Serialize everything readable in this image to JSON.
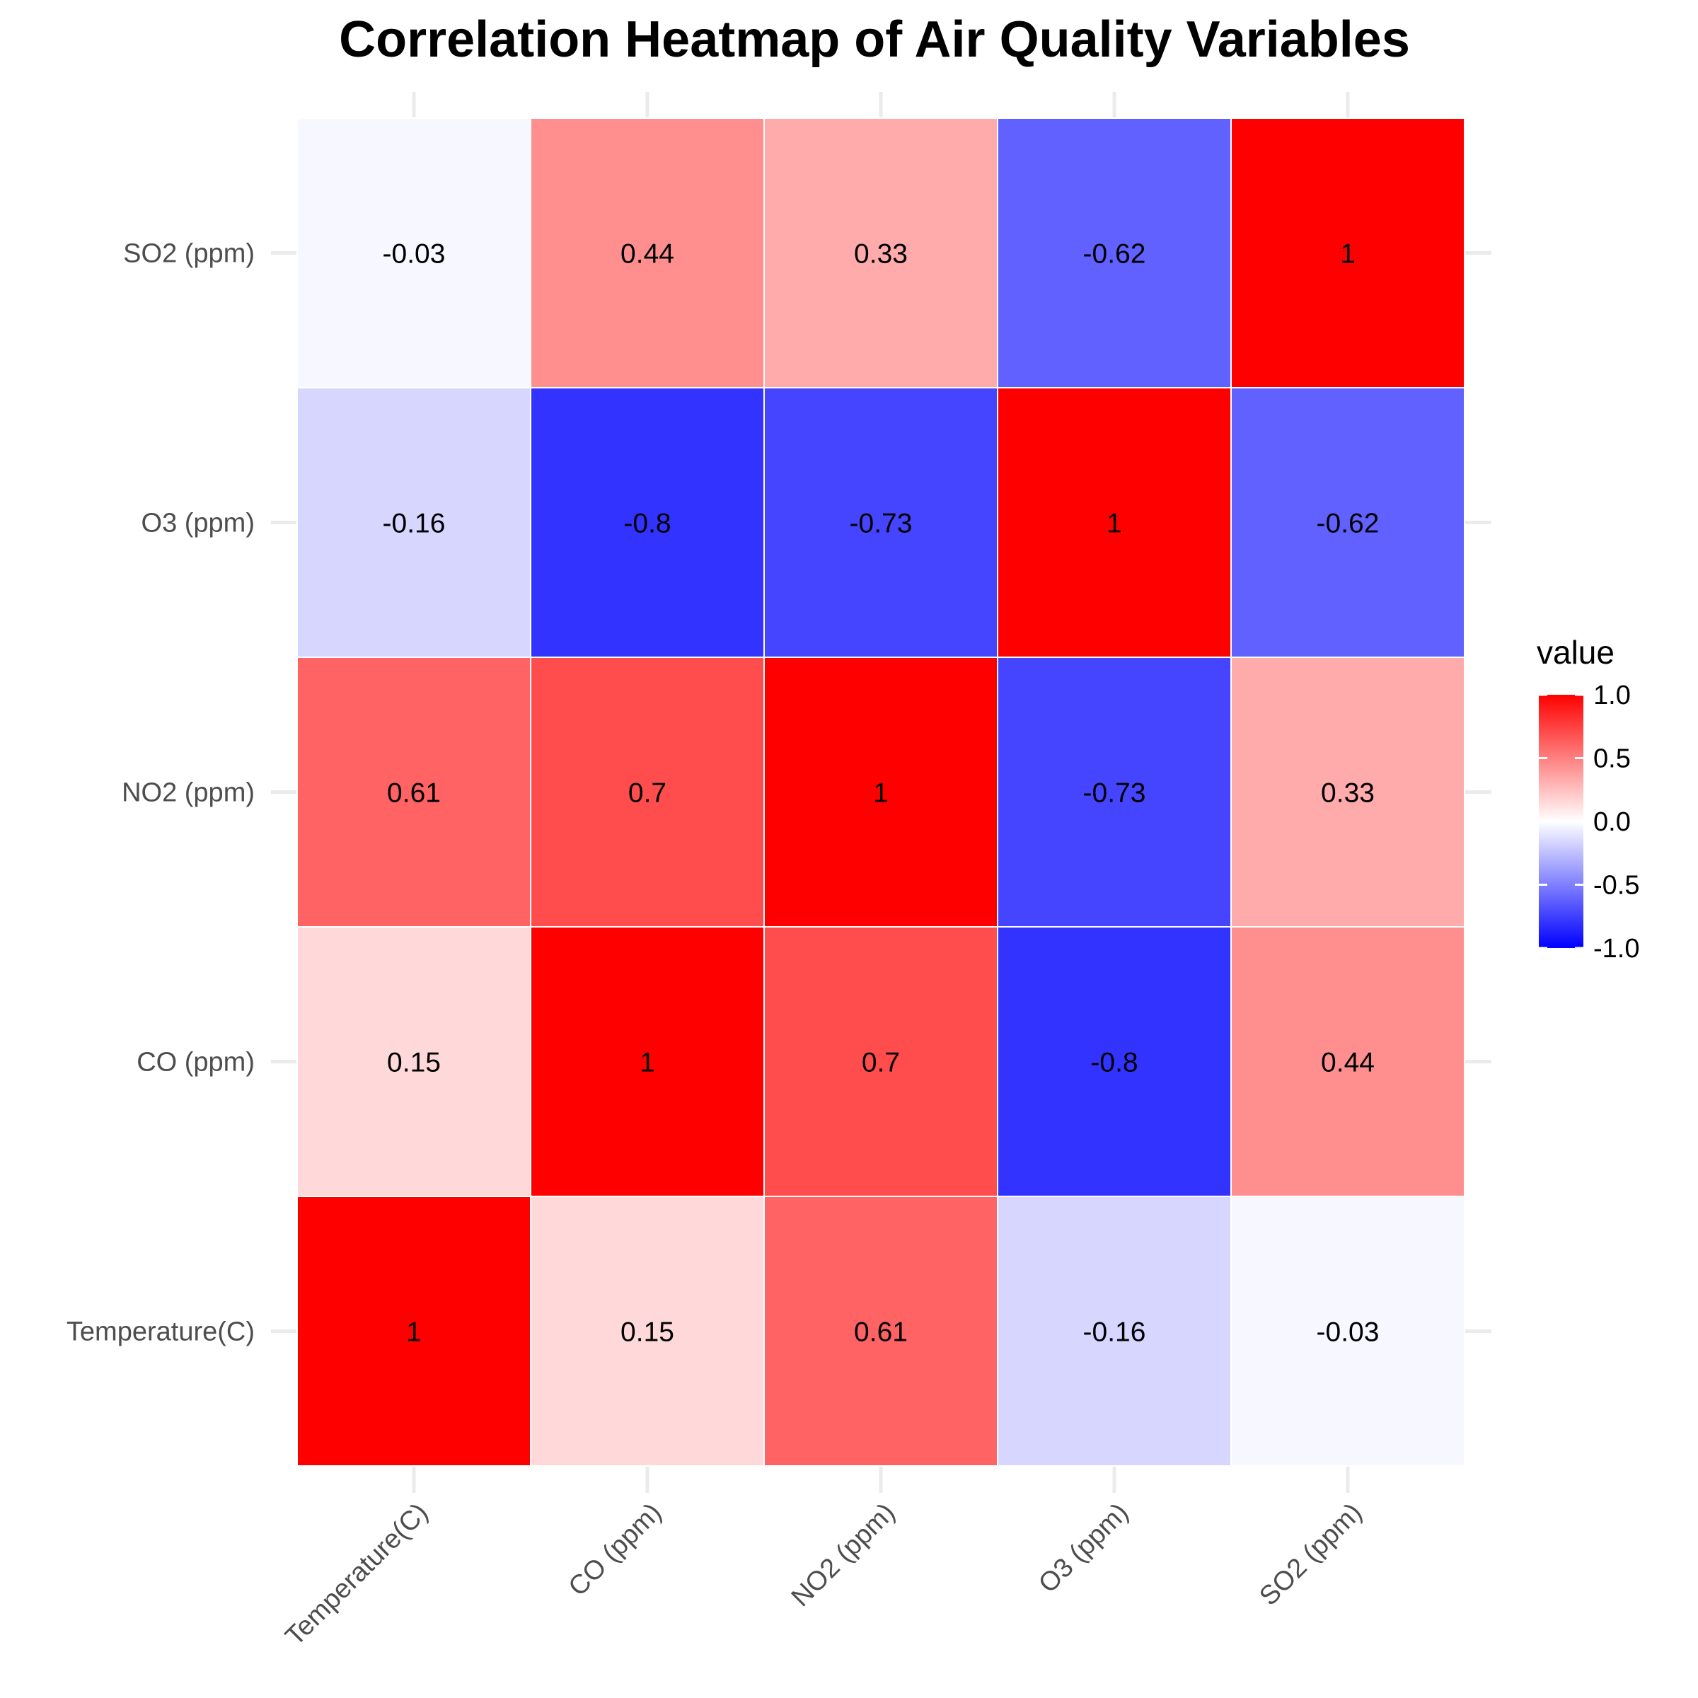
{
  "chart_data": {
    "type": "heatmap",
    "title": "Correlation Heatmap of Air Quality Variables",
    "x_categories": [
      "Temperature(C)",
      "CO (ppm)",
      "NO2 (ppm)",
      "O3 (ppm)",
      "SO2 (ppm)"
    ],
    "y_categories": [
      "Temperature(C)",
      "CO (ppm)",
      "NO2 (ppm)",
      "O3 (ppm)",
      "SO2 (ppm)"
    ],
    "matrix": [
      [
        1,
        0.15,
        0.61,
        -0.16,
        -0.03
      ],
      [
        0.15,
        1,
        0.7,
        -0.8,
        0.44
      ],
      [
        0.61,
        0.7,
        1,
        -0.73,
        0.33
      ],
      [
        -0.16,
        -0.8,
        -0.73,
        1,
        -0.62
      ],
      [
        -0.03,
        0.44,
        0.33,
        -0.62,
        1
      ]
    ],
    "cell_labels": [
      [
        "1",
        "0.15",
        "0.61",
        "-0.16",
        "-0.03"
      ],
      [
        "0.15",
        "1",
        "0.7",
        "-0.8",
        "0.44"
      ],
      [
        "0.61",
        "0.7",
        "1",
        "-0.73",
        "0.33"
      ],
      [
        "-0.16",
        "-0.8",
        "-0.73",
        "1",
        "-0.62"
      ],
      [
        "-0.03",
        "0.44",
        "0.33",
        "-0.62",
        "1"
      ]
    ],
    "legend": {
      "title": "value",
      "placement": "right",
      "range": [
        -1,
        1
      ],
      "ticks": [
        1.0,
        0.5,
        0.0,
        -0.5,
        -1.0
      ],
      "tick_labels": [
        "1.0",
        "0.5",
        "0.0",
        "-0.5",
        "-1.0"
      ],
      "colors": {
        "low": "#0000ff",
        "mid": "#ffffff",
        "high": "#ff0000"
      }
    },
    "grid": true
  }
}
